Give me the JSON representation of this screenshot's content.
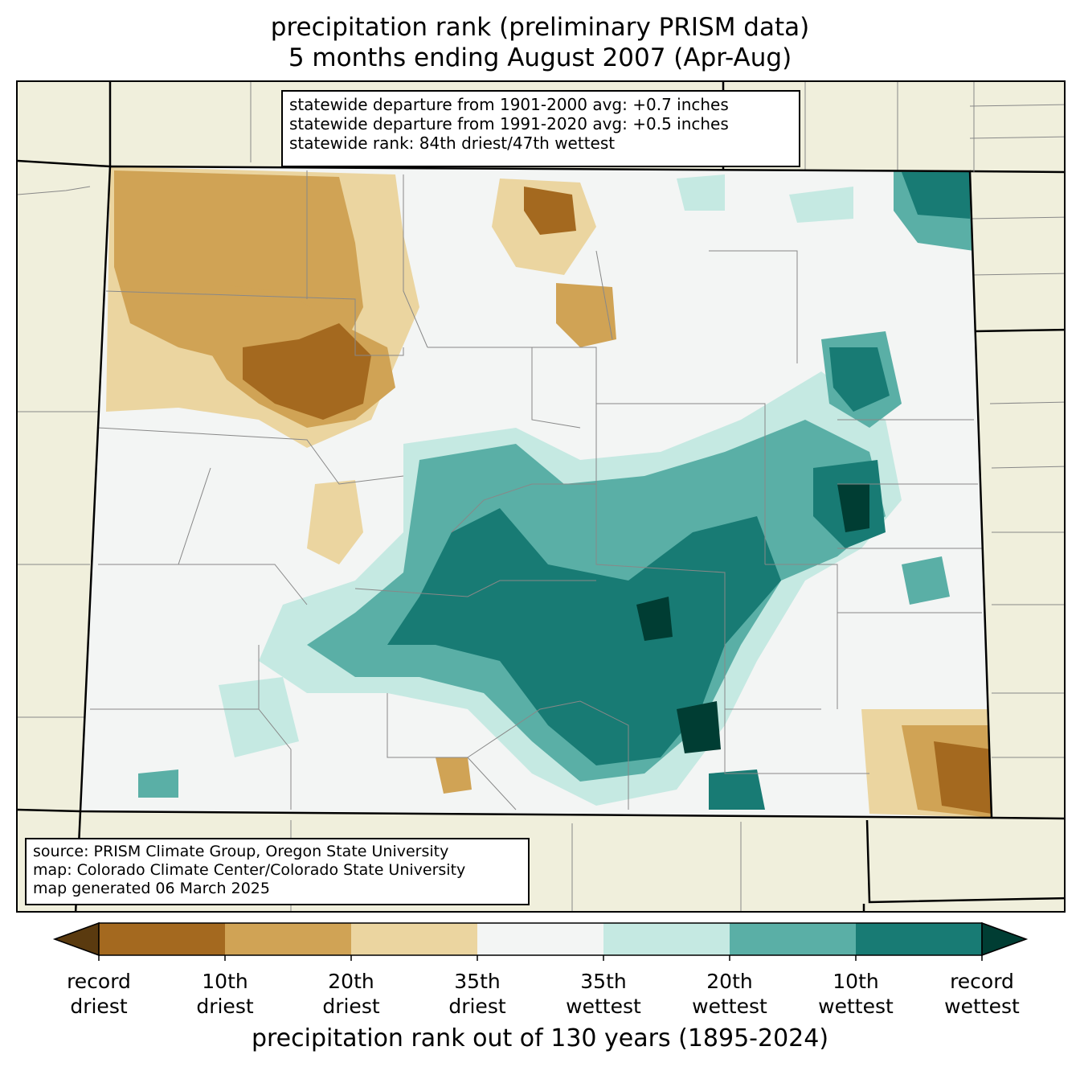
{
  "title": {
    "line1": "precipitation rank (preliminary PRISM data)",
    "line2": "5 months ending August 2007 (Apr-Aug)"
  },
  "stats": {
    "line1": "statewide departure from 1901-2000 avg: +0.7 inches",
    "line2": "statewide departure from 1991-2020 avg: +0.5 inches",
    "line3": "statewide rank: 84th driest/47th wettest"
  },
  "source": {
    "line1": "source: PRISM Climate Group, Oregon State University",
    "line2": "map: Colorado Climate Center/Colorado State University",
    "line3": "map generated 06 March 2025"
  },
  "colors": {
    "background": "#f0efdc",
    "record_driest": "#5a3a0f",
    "driest_10": "#a4691f",
    "driest_20": "#d0a355",
    "driest_35": "#ebd5a0",
    "neutral": "#f3f5f4",
    "wettest_35": "#c5e9e2",
    "wettest_20": "#5aafa6",
    "wettest_10": "#187b74",
    "record_wettest": "#003d33"
  },
  "colorbar": {
    "title": "precipitation rank out of 130 years (1895-2024)",
    "bins": [
      "record_driest",
      "driest_10",
      "driest_20",
      "driest_35",
      "neutral",
      "wettest_35",
      "wettest_20",
      "wettest_10",
      "record_wettest"
    ],
    "ticks": [
      {
        "top": "record",
        "bottom": "driest"
      },
      {
        "top": "10th",
        "bottom": "driest"
      },
      {
        "top": "20th",
        "bottom": "driest"
      },
      {
        "top": "35th",
        "bottom": "driest"
      },
      {
        "top": "35th",
        "bottom": "wettest"
      },
      {
        "top": "20th",
        "bottom": "wettest"
      },
      {
        "top": "10th",
        "bottom": "wettest"
      },
      {
        "top": "record",
        "bottom": "wettest"
      }
    ]
  }
}
